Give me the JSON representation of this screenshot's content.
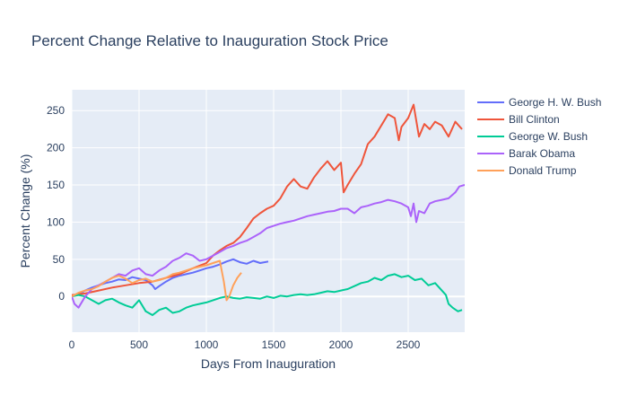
{
  "chart_data": {
    "type": "line",
    "title": "Percent Change Relative to Inauguration Stock Price",
    "xlabel": "Days From Inauguration",
    "ylabel": "Percent Change (%)",
    "xlim": [
      0,
      2920
    ],
    "ylim": [
      -48,
      278
    ],
    "x_ticks": [
      0,
      500,
      1000,
      1500,
      2000,
      2500
    ],
    "y_ticks": [
      0,
      50,
      100,
      150,
      200,
      250
    ],
    "grid": true,
    "plot_background": "#e5ecf6",
    "legend_position": "right",
    "series": [
      {
        "name": "George H. W. Bush",
        "color": "#636efa",
        "points": [
          [
            0,
            0
          ],
          [
            50,
            3
          ],
          [
            100,
            8
          ],
          [
            150,
            12
          ],
          [
            200,
            15
          ],
          [
            250,
            18
          ],
          [
            300,
            20
          ],
          [
            350,
            23
          ],
          [
            400,
            22
          ],
          [
            450,
            26
          ],
          [
            500,
            24
          ],
          [
            550,
            22
          ],
          [
            600,
            15
          ],
          [
            620,
            10
          ],
          [
            650,
            14
          ],
          [
            700,
            20
          ],
          [
            750,
            25
          ],
          [
            800,
            28
          ],
          [
            850,
            30
          ],
          [
            900,
            32
          ],
          [
            950,
            35
          ],
          [
            1000,
            38
          ],
          [
            1050,
            40
          ],
          [
            1100,
            43
          ],
          [
            1150,
            47
          ],
          [
            1200,
            50
          ],
          [
            1250,
            46
          ],
          [
            1300,
            44
          ],
          [
            1350,
            48
          ],
          [
            1400,
            45
          ],
          [
            1460,
            47
          ]
        ]
      },
      {
        "name": "Bill Clinton",
        "color": "#ef553b",
        "points": [
          [
            0,
            2
          ],
          [
            100,
            4
          ],
          [
            200,
            8
          ],
          [
            300,
            12
          ],
          [
            400,
            15
          ],
          [
            500,
            18
          ],
          [
            600,
            20
          ],
          [
            700,
            25
          ],
          [
            800,
            30
          ],
          [
            900,
            38
          ],
          [
            1000,
            45
          ],
          [
            1050,
            55
          ],
          [
            1100,
            62
          ],
          [
            1150,
            68
          ],
          [
            1200,
            72
          ],
          [
            1250,
            80
          ],
          [
            1300,
            92
          ],
          [
            1350,
            105
          ],
          [
            1400,
            112
          ],
          [
            1450,
            118
          ],
          [
            1500,
            122
          ],
          [
            1550,
            132
          ],
          [
            1600,
            148
          ],
          [
            1650,
            158
          ],
          [
            1700,
            148
          ],
          [
            1750,
            145
          ],
          [
            1800,
            160
          ],
          [
            1850,
            172
          ],
          [
            1900,
            182
          ],
          [
            1950,
            170
          ],
          [
            2000,
            180
          ],
          [
            2020,
            140
          ],
          [
            2050,
            150
          ],
          [
            2100,
            165
          ],
          [
            2150,
            178
          ],
          [
            2200,
            205
          ],
          [
            2250,
            215
          ],
          [
            2300,
            230
          ],
          [
            2350,
            245
          ],
          [
            2400,
            240
          ],
          [
            2430,
            210
          ],
          [
            2450,
            228
          ],
          [
            2500,
            240
          ],
          [
            2540,
            258
          ],
          [
            2580,
            215
          ],
          [
            2620,
            232
          ],
          [
            2660,
            225
          ],
          [
            2700,
            235
          ],
          [
            2750,
            230
          ],
          [
            2800,
            215
          ],
          [
            2850,
            235
          ],
          [
            2900,
            225
          ]
        ]
      },
      {
        "name": "George W. Bush",
        "color": "#00cc96",
        "points": [
          [
            0,
            0
          ],
          [
            50,
            2
          ],
          [
            100,
            0
          ],
          [
            150,
            -5
          ],
          [
            200,
            -10
          ],
          [
            250,
            -5
          ],
          [
            300,
            -3
          ],
          [
            350,
            -8
          ],
          [
            400,
            -12
          ],
          [
            450,
            -15
          ],
          [
            500,
            -5
          ],
          [
            550,
            -20
          ],
          [
            600,
            -25
          ],
          [
            650,
            -18
          ],
          [
            700,
            -15
          ],
          [
            750,
            -22
          ],
          [
            800,
            -20
          ],
          [
            850,
            -15
          ],
          [
            900,
            -12
          ],
          [
            950,
            -10
          ],
          [
            1000,
            -8
          ],
          [
            1050,
            -5
          ],
          [
            1100,
            -2
          ],
          [
            1150,
            0
          ],
          [
            1200,
            -2
          ],
          [
            1250,
            -3
          ],
          [
            1300,
            -1
          ],
          [
            1350,
            -2
          ],
          [
            1400,
            -3
          ],
          [
            1450,
            0
          ],
          [
            1500,
            -2
          ],
          [
            1550,
            1
          ],
          [
            1600,
            0
          ],
          [
            1650,
            2
          ],
          [
            1700,
            3
          ],
          [
            1750,
            2
          ],
          [
            1800,
            3
          ],
          [
            1850,
            5
          ],
          [
            1900,
            7
          ],
          [
            1950,
            6
          ],
          [
            2000,
            8
          ],
          [
            2050,
            10
          ],
          [
            2100,
            14
          ],
          [
            2150,
            18
          ],
          [
            2200,
            20
          ],
          [
            2250,
            25
          ],
          [
            2300,
            22
          ],
          [
            2350,
            28
          ],
          [
            2400,
            30
          ],
          [
            2450,
            26
          ],
          [
            2500,
            28
          ],
          [
            2550,
            22
          ],
          [
            2600,
            24
          ],
          [
            2650,
            15
          ],
          [
            2700,
            18
          ],
          [
            2750,
            8
          ],
          [
            2780,
            2
          ],
          [
            2800,
            -10
          ],
          [
            2830,
            -15
          ],
          [
            2870,
            -20
          ],
          [
            2900,
            -18
          ]
        ]
      },
      {
        "name": "Barak Obama",
        "color": "#ab63fa",
        "points": [
          [
            0,
            0
          ],
          [
            20,
            -10
          ],
          [
            50,
            -15
          ],
          [
            100,
            0
          ],
          [
            150,
            10
          ],
          [
            200,
            15
          ],
          [
            250,
            20
          ],
          [
            300,
            25
          ],
          [
            350,
            30
          ],
          [
            400,
            28
          ],
          [
            450,
            35
          ],
          [
            500,
            38
          ],
          [
            550,
            30
          ],
          [
            600,
            28
          ],
          [
            650,
            35
          ],
          [
            700,
            40
          ],
          [
            750,
            48
          ],
          [
            800,
            52
          ],
          [
            850,
            58
          ],
          [
            900,
            55
          ],
          [
            950,
            48
          ],
          [
            1000,
            50
          ],
          [
            1050,
            55
          ],
          [
            1100,
            60
          ],
          [
            1150,
            65
          ],
          [
            1200,
            68
          ],
          [
            1250,
            72
          ],
          [
            1300,
            75
          ],
          [
            1350,
            80
          ],
          [
            1400,
            85
          ],
          [
            1450,
            92
          ],
          [
            1500,
            95
          ],
          [
            1550,
            98
          ],
          [
            1600,
            100
          ],
          [
            1650,
            102
          ],
          [
            1700,
            105
          ],
          [
            1750,
            108
          ],
          [
            1800,
            110
          ],
          [
            1850,
            112
          ],
          [
            1900,
            114
          ],
          [
            1950,
            115
          ],
          [
            2000,
            118
          ],
          [
            2050,
            118
          ],
          [
            2100,
            112
          ],
          [
            2150,
            120
          ],
          [
            2200,
            122
          ],
          [
            2250,
            125
          ],
          [
            2300,
            127
          ],
          [
            2350,
            130
          ],
          [
            2400,
            128
          ],
          [
            2450,
            125
          ],
          [
            2500,
            120
          ],
          [
            2520,
            108
          ],
          [
            2540,
            125
          ],
          [
            2560,
            100
          ],
          [
            2580,
            115
          ],
          [
            2620,
            112
          ],
          [
            2660,
            125
          ],
          [
            2700,
            128
          ],
          [
            2750,
            130
          ],
          [
            2800,
            132
          ],
          [
            2850,
            140
          ],
          [
            2880,
            148
          ],
          [
            2920,
            150
          ]
        ]
      },
      {
        "name": "Donald Trump",
        "color": "#ffa15a",
        "points": [
          [
            0,
            0
          ],
          [
            50,
            5
          ],
          [
            100,
            8
          ],
          [
            150,
            10
          ],
          [
            200,
            14
          ],
          [
            250,
            20
          ],
          [
            300,
            25
          ],
          [
            350,
            28
          ],
          [
            400,
            24
          ],
          [
            450,
            18
          ],
          [
            500,
            22
          ],
          [
            550,
            24
          ],
          [
            600,
            20
          ],
          [
            650,
            22
          ],
          [
            700,
            25
          ],
          [
            750,
            30
          ],
          [
            800,
            32
          ],
          [
            850,
            35
          ],
          [
            900,
            38
          ],
          [
            950,
            40
          ],
          [
            1000,
            42
          ],
          [
            1050,
            45
          ],
          [
            1100,
            48
          ],
          [
            1130,
            20
          ],
          [
            1150,
            -5
          ],
          [
            1170,
            0
          ],
          [
            1200,
            15
          ],
          [
            1230,
            25
          ],
          [
            1260,
            32
          ]
        ]
      }
    ]
  }
}
